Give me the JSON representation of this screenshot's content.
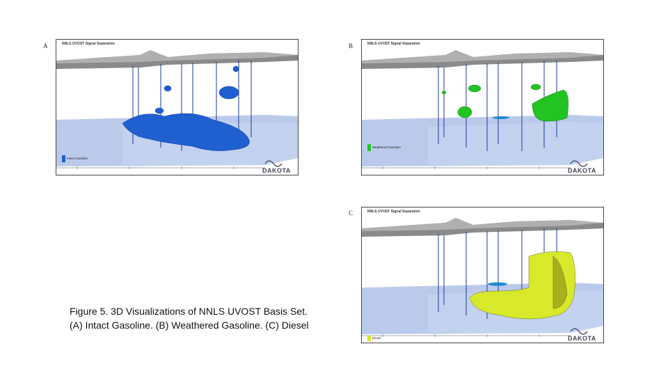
{
  "panels": [
    {
      "label": "A",
      "header": "NNLS UVOST Signal Separation",
      "legend": "Intact Gasoline",
      "logo": "DAKOTA"
    },
    {
      "label": "B",
      "header": "NNLS UVOST Signal Separation",
      "legend": "Weathered Gasoline",
      "logo": "DAKOTA"
    },
    {
      "label": "C",
      "header": "NNLS UVOST Signal Separation",
      "legend": "Diesel",
      "logo": "DAKOTA"
    }
  ],
  "caption": {
    "line1": "Figure 5. 3D Visualizations of NNLS UVOST Basis Set.",
    "line2": "(A) Intact Gasoline. (B) Weathered Gasoline. (C) Diesel"
  }
}
